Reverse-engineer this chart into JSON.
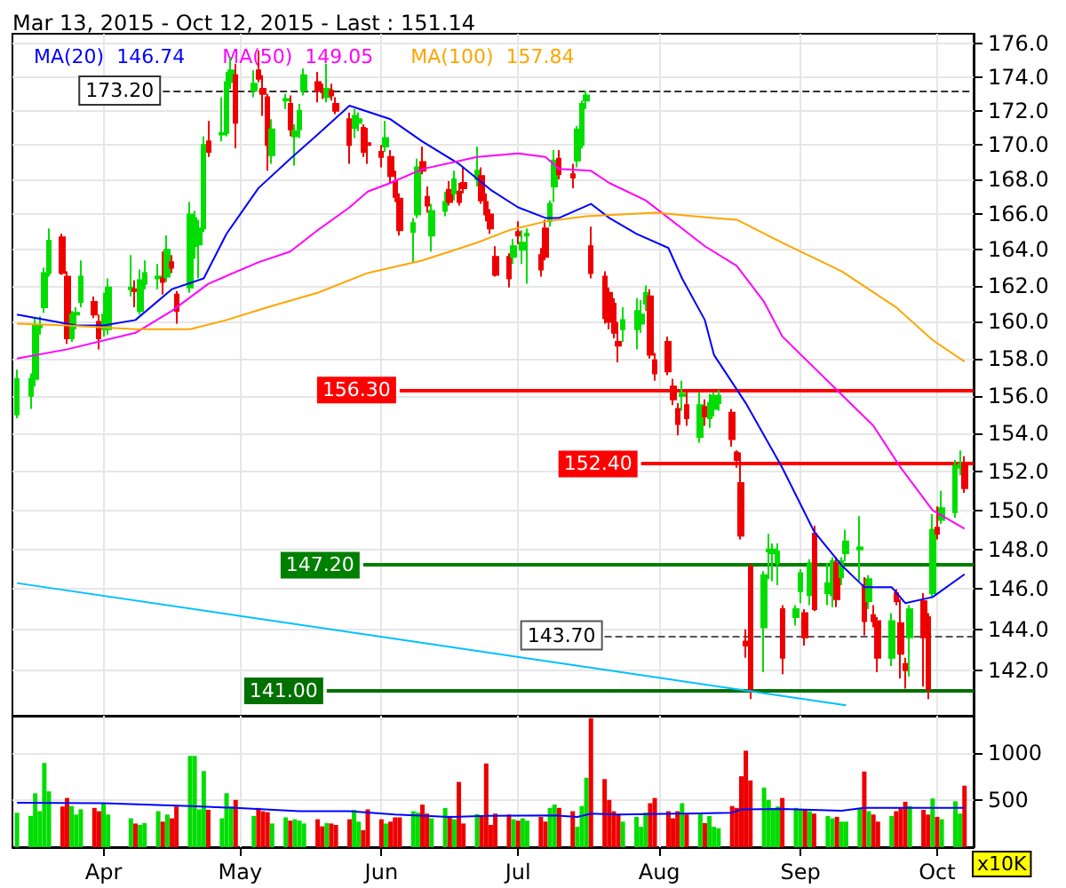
{
  "chart_data": [
    {
      "type": "candlestick",
      "title": "Mar 13, 2015 - Oct 12, 2015 - Last : 151.14",
      "legend": "top left",
      "log": "y",
      "grid": true,
      "tick_labels": "y",
      "xlim": [
        "2015-03-12",
        "2015-10-09"
      ],
      "xticks": [
        {
          "value": "2015-04-01",
          "label": null
        },
        {
          "value": "2015-05-01",
          "label": null
        },
        {
          "value": "2015-06-01",
          "label": null
        },
        {
          "value": "2015-07-01",
          "label": null
        },
        {
          "value": "2015-08-01",
          "label": null
        },
        {
          "value": "2015-09-01",
          "label": null
        },
        {
          "value": "2015-10-01",
          "label": null
        }
      ],
      "ylim": [
        139.8,
        176.6
      ],
      "yticks": [
        {
          "value": 142,
          "label": "142.0"
        },
        {
          "value": 144,
          "label": "144.0"
        },
        {
          "value": 146,
          "label": "146.0"
        },
        {
          "value": 148,
          "label": "148.0"
        },
        {
          "value": 150,
          "label": "150.0"
        },
        {
          "value": 152,
          "label": "152.0"
        },
        {
          "value": 154,
          "label": "154.0"
        },
        {
          "value": 156,
          "label": "156.0"
        },
        {
          "value": 158,
          "label": "158.0"
        },
        {
          "value": 160,
          "label": "160.0"
        },
        {
          "value": 162,
          "label": "162.0"
        },
        {
          "value": 164,
          "label": "164.0"
        },
        {
          "value": 166,
          "label": "166.0"
        },
        {
          "value": 168,
          "label": "168.0"
        },
        {
          "value": 170,
          "label": "170.0"
        },
        {
          "value": 172,
          "label": "172.0"
        },
        {
          "value": 174,
          "label": "174.0"
        },
        {
          "value": 176,
          "label": "176.0"
        }
      ],
      "x": [
        "2015-03-13",
        "2015-03-16",
        "2015-03-17",
        "2015-03-18",
        "2015-03-19",
        "2015-03-20",
        "2015-03-23",
        "2015-03-24",
        "2015-03-25",
        "2015-03-26",
        "2015-03-27",
        "2015-03-30",
        "2015-03-31",
        "2015-04-01",
        "2015-04-02",
        "2015-04-07",
        "2015-04-08",
        "2015-04-09",
        "2015-04-10",
        "2015-04-13",
        "2015-04-14",
        "2015-04-15",
        "2015-04-16",
        "2015-04-17",
        "2015-04-20",
        "2015-04-21",
        "2015-04-22",
        "2015-04-23",
        "2015-04-24",
        "2015-04-27",
        "2015-04-28",
        "2015-04-29",
        "2015-04-30",
        "2015-05-04",
        "2015-05-05",
        "2015-05-06",
        "2015-05-07",
        "2015-05-08",
        "2015-05-11",
        "2015-05-12",
        "2015-05-13",
        "2015-05-14",
        "2015-05-15",
        "2015-05-18",
        "2015-05-19",
        "2015-05-20",
        "2015-05-21",
        "2015-05-22",
        "2015-05-25",
        "2015-05-26",
        "2015-05-27",
        "2015-05-28",
        "2015-05-29",
        "2015-06-01",
        "2015-06-02",
        "2015-06-03",
        "2015-06-04",
        "2015-06-05",
        "2015-06-08",
        "2015-06-09",
        "2015-06-10",
        "2015-06-11",
        "2015-06-12",
        "2015-06-15",
        "2015-06-16",
        "2015-06-17",
        "2015-06-18",
        "2015-06-19",
        "2015-06-22",
        "2015-06-23",
        "2015-06-24",
        "2015-06-25",
        "2015-06-26",
        "2015-06-29",
        "2015-06-30",
        "2015-07-01",
        "2015-07-02",
        "2015-07-03",
        "2015-07-06",
        "2015-07-07",
        "2015-07-08",
        "2015-07-09",
        "2015-07-10",
        "2015-07-13",
        "2015-07-14",
        "2015-07-15",
        "2015-07-16",
        "2015-07-17",
        "2015-07-20",
        "2015-07-21",
        "2015-07-22",
        "2015-07-23",
        "2015-07-24",
        "2015-07-27",
        "2015-07-28",
        "2015-07-29",
        "2015-07-30",
        "2015-07-31",
        "2015-08-03",
        "2015-08-04",
        "2015-08-05",
        "2015-08-06",
        "2015-08-07",
        "2015-08-10",
        "2015-08-11",
        "2015-08-12",
        "2015-08-13",
        "2015-08-14",
        "2015-08-17",
        "2015-08-18",
        "2015-08-19",
        "2015-08-20",
        "2015-08-21",
        "2015-08-24",
        "2015-08-25",
        "2015-08-26",
        "2015-08-27",
        "2015-08-28",
        "2015-08-31",
        "2015-09-01",
        "2015-09-02",
        "2015-09-03",
        "2015-09-04",
        "2015-09-07",
        "2015-09-08",
        "2015-09-09",
        "2015-09-10",
        "2015-09-11",
        "2015-09-14",
        "2015-09-15",
        "2015-09-16",
        "2015-09-17",
        "2015-09-18",
        "2015-09-21",
        "2015-09-22",
        "2015-09-23",
        "2015-09-24",
        "2015-09-25",
        "2015-09-28",
        "2015-09-29",
        "2015-09-30",
        "2015-10-01",
        "2015-10-02",
        "2015-10-05",
        "2015-10-06",
        "2015-10-07"
      ],
      "ohlc": [
        [
          155.0,
          157.4,
          154.8,
          156.9
        ],
        [
          156.0,
          157.2,
          155.3,
          156.9
        ],
        [
          156.9,
          160.2,
          156.5,
          159.8
        ],
        [
          159.7,
          160.3,
          159.3,
          159.8
        ],
        [
          160.8,
          163.0,
          160.5,
          162.7
        ],
        [
          162.7,
          165.2,
          162.5,
          164.5
        ],
        [
          164.7,
          164.9,
          162.6,
          162.7
        ],
        [
          162.5,
          162.8,
          158.8,
          159.1
        ],
        [
          159.1,
          160.6,
          158.9,
          160.4
        ],
        [
          160.4,
          160.8,
          159.6,
          160.5
        ],
        [
          161.1,
          163.4,
          160.8,
          162.5
        ],
        [
          161.1,
          161.4,
          160.2,
          160.4
        ],
        [
          160.0,
          160.4,
          158.5,
          159.1
        ],
        [
          159.6,
          161.6,
          159.2,
          160.4
        ],
        [
          159.6,
          162.4,
          159.3,
          161.9
        ],
        [
          161.8,
          163.7,
          161.4,
          161.9
        ],
        [
          161.8,
          162.3,
          160.8,
          161.7
        ],
        [
          160.6,
          162.9,
          160.4,
          162.3
        ],
        [
          162.1,
          163.4,
          161.8,
          162.7
        ],
        [
          162.4,
          163.2,
          161.8,
          162.5
        ],
        [
          162.4,
          163.9,
          161.5,
          162.2
        ],
        [
          162.5,
          164.8,
          162.2,
          164.0
        ],
        [
          163.3,
          163.7,
          162.7,
          163.0
        ],
        [
          161.5,
          161.7,
          159.9,
          160.6
        ],
        [
          161.9,
          166.7,
          161.6,
          166.0
        ],
        [
          164.2,
          166.2,
          163.5,
          165.8
        ],
        [
          164.3,
          165.7,
          162.4,
          165.2
        ],
        [
          165.2,
          170.5,
          165.0,
          170.0
        ],
        [
          170.2,
          171.4,
          169.3,
          169.6
        ],
        [
          170.6,
          172.8,
          170.2,
          170.7
        ],
        [
          170.7,
          174.3,
          170.5,
          173.7
        ],
        [
          173.7,
          175.2,
          173.3,
          174.4
        ],
        [
          174.1,
          174.8,
          169.8,
          171.3
        ],
        [
          173.2,
          174.4,
          172.8,
          173.6
        ],
        [
          174.4,
          175.6,
          173.7,
          173.9
        ],
        [
          173.3,
          174.1,
          171.7,
          173.0
        ],
        [
          172.8,
          173.0,
          168.5,
          170.0
        ],
        [
          169.4,
          171.5,
          168.9,
          170.9
        ],
        [
          172.6,
          173.0,
          172.1,
          172.7
        ],
        [
          172.4,
          172.9,
          170.5,
          170.9
        ],
        [
          170.5,
          171.2,
          168.8,
          170.8
        ],
        [
          170.9,
          172.4,
          170.4,
          172.0
        ],
        [
          173.2,
          174.5,
          172.9,
          174.1
        ],
        [
          173.7,
          174.3,
          172.5,
          173.2
        ],
        [
          173.2,
          173.6,
          172.7,
          173.1
        ],
        [
          172.8,
          174.8,
          172.5,
          173.3
        ],
        [
          173.2,
          173.6,
          172.6,
          172.9
        ],
        [
          172.4,
          172.8,
          171.8,
          172.0
        ],
        [
          171.5,
          171.9,
          168.9,
          170.0
        ],
        [
          171.0,
          172.1,
          170.4,
          171.7
        ],
        [
          171.3,
          171.9,
          170.8,
          171.5
        ],
        [
          171.0,
          171.2,
          169.3,
          169.6
        ],
        [
          170.1,
          171.0,
          168.9,
          170.0
        ],
        [
          169.6,
          170.0,
          168.7,
          169.3
        ],
        [
          169.9,
          171.4,
          169.6,
          170.4
        ],
        [
          169.3,
          169.7,
          167.8,
          168.2
        ],
        [
          167.9,
          168.5,
          166.7,
          167.0
        ],
        [
          166.9,
          167.2,
          164.8,
          165.1
        ],
        [
          165.0,
          165.8,
          163.3,
          165.5
        ],
        [
          166.0,
          169.2,
          165.8,
          168.7
        ],
        [
          169.0,
          169.9,
          168.3,
          168.5
        ],
        [
          167.0,
          167.6,
          166.1,
          166.5
        ],
        [
          164.8,
          166.6,
          163.9,
          166.2
        ],
        [
          166.2,
          167.3,
          165.9,
          166.7
        ],
        [
          167.4,
          167.9,
          166.5,
          166.7
        ],
        [
          167.2,
          168.5,
          166.8,
          168.0
        ],
        [
          167.3,
          167.8,
          166.5,
          166.7
        ],
        [
          167.8,
          168.7,
          167.2,
          167.5
        ],
        [
          168.0,
          169.9,
          167.6,
          168.5
        ],
        [
          168.2,
          168.7,
          166.6,
          166.8
        ],
        [
          166.7,
          167.2,
          165.6,
          166.0
        ],
        [
          166.0,
          166.3,
          164.9,
          165.2
        ],
        [
          163.6,
          164.2,
          162.5,
          162.6
        ],
        [
          163.6,
          163.8,
          161.9,
          162.4
        ],
        [
          163.6,
          164.6,
          163.2,
          164.2
        ],
        [
          165.0,
          165.6,
          164.3,
          164.8
        ],
        [
          164.0,
          165.1,
          163.2,
          164.4
        ],
        [
          164.8,
          165.2,
          162.1,
          164.9
        ],
        [
          163.7,
          164.1,
          162.5,
          162.9
        ],
        [
          165.2,
          165.7,
          163.4,
          163.6
        ],
        [
          165.6,
          166.8,
          165.3,
          166.6
        ],
        [
          167.6,
          169.7,
          166.7,
          169.1
        ],
        [
          169.2,
          169.7,
          168.0,
          168.3
        ],
        [
          168.3,
          168.9,
          167.5,
          168.1
        ],
        [
          169.1,
          171.1,
          168.7,
          170.9
        ],
        [
          170.0,
          172.6,
          169.8,
          172.4
        ],
        [
          172.6,
          173.2,
          172.1,
          172.9
        ],
        [
          164.2,
          165.3,
          162.4,
          162.7
        ],
        [
          162.5,
          162.8,
          159.9,
          160.2
        ],
        [
          161.6,
          161.9,
          159.6,
          160.0
        ],
        [
          161.0,
          161.3,
          159.1,
          159.4
        ],
        [
          158.9,
          160.0,
          157.8,
          158.7
        ],
        [
          159.6,
          160.8,
          158.9,
          160.1
        ],
        [
          159.6,
          161.3,
          158.5,
          160.6
        ],
        [
          159.9,
          161.2,
          159.4,
          160.4
        ],
        [
          161.0,
          162.0,
          160.6,
          161.6
        ],
        [
          161.4,
          161.8,
          158.0,
          158.2
        ],
        [
          157.9,
          158.3,
          156.8,
          157.2
        ],
        [
          158.9,
          159.2,
          157.1,
          157.3
        ],
        [
          156.5,
          156.9,
          155.5,
          155.8
        ],
        [
          155.3,
          155.6,
          153.9,
          154.5
        ],
        [
          156.0,
          156.8,
          155.2,
          156.1
        ],
        [
          155.5,
          156.3,
          154.4,
          154.8
        ],
        [
          153.8,
          156.2,
          153.5,
          155.5
        ],
        [
          155.4,
          155.8,
          154.4,
          154.9
        ],
        [
          154.8,
          156.1,
          154.3,
          155.6
        ],
        [
          155.3,
          156.2,
          154.9,
          156.0
        ],
        [
          155.6,
          156.3,
          155.2,
          156.0
        ],
        [
          155.1,
          155.3,
          153.3,
          153.7
        ],
        [
          153.0,
          153.1,
          152.2,
          152.6
        ],
        [
          151.4,
          153.0,
          148.5,
          148.7
        ],
        [
          143.4,
          144.0,
          142.6,
          143.2
        ],
        [
          147.1,
          147.3,
          140.6,
          141.1
        ],
        [
          144.1,
          146.9,
          141.9,
          146.7
        ],
        [
          147.9,
          148.8,
          146.5,
          148.0
        ],
        [
          147.8,
          148.3,
          146.4,
          148.0
        ],
        [
          147.3,
          148.3,
          146.2,
          147.9
        ],
        [
          145.0,
          145.2,
          141.8,
          142.6
        ],
        [
          144.6,
          145.2,
          144.2,
          145.0
        ],
        [
          145.9,
          147.0,
          145.3,
          146.8
        ],
        [
          144.8,
          145.0,
          143.2,
          143.6
        ],
        [
          145.7,
          147.5,
          145.2,
          147.3
        ],
        [
          148.8,
          149.2,
          144.9,
          145.0
        ],
        [
          145.8,
          147.3,
          145.2,
          146.3
        ],
        [
          145.7,
          147.6,
          145.1,
          147.4
        ],
        [
          147.3,
          147.6,
          145.1,
          145.5
        ],
        [
          146.6,
          147.6,
          146.2,
          147.4
        ],
        [
          147.8,
          149.0,
          147.4,
          148.4
        ],
        [
          148.0,
          149.7,
          146.4,
          148.1
        ],
        [
          146.2,
          146.6,
          143.7,
          144.4
        ],
        [
          145.4,
          146.7,
          145.0,
          146.5
        ],
        [
          144.7,
          145.2,
          144.1,
          144.4
        ],
        [
          144.4,
          144.6,
          141.9,
          142.6
        ],
        [
          142.6,
          144.8,
          142.2,
          144.4
        ],
        [
          145.8,
          146.0,
          145.2,
          145.4
        ],
        [
          144.3,
          145.5,
          141.6,
          142.8
        ],
        [
          142.3,
          142.6,
          141.1,
          142.0
        ],
        [
          143.6,
          145.2,
          141.7,
          145.0
        ],
        [
          145.4,
          145.8,
          141.2,
          143.6
        ],
        [
          144.6,
          144.8,
          140.6,
          141.1
        ],
        [
          145.8,
          149.8,
          145.6,
          149.0
        ],
        [
          149.1,
          150.2,
          148.5,
          148.8
        ],
        [
          149.5,
          151.0,
          149.3,
          150.1
        ],
        [
          149.9,
          152.6,
          149.6,
          152.3
        ],
        [
          152.2,
          153.1,
          151.8,
          152.4
        ],
        [
          152.4,
          152.8,
          150.9,
          151.14
        ]
      ],
      "colors": [
        "#00dd00",
        "#00dd00",
        "#00dd00",
        "#00dd00",
        "#00dd00",
        "#00dd00",
        "#ee0000",
        "#ee0000",
        "#00dd00",
        "#00dd00",
        "#00dd00",
        "#ee0000",
        "#ee0000",
        "#00dd00",
        "#00dd00",
        "#00dd00",
        "#ee0000",
        "#00dd00",
        "#00dd00",
        "#00dd00",
        "#ee0000",
        "#00dd00",
        "#ee0000",
        "#ee0000",
        "#00dd00",
        "#00dd00",
        "#00dd00",
        "#00dd00",
        "#ee0000",
        "#00dd00",
        "#00dd00",
        "#00dd00",
        "#ee0000",
        "#00dd00",
        "#ee0000",
        "#ee0000",
        "#ee0000",
        "#00dd00",
        "#00dd00",
        "#ee0000",
        "#00dd00",
        "#00dd00",
        "#00dd00",
        "#ee0000",
        "#ee0000",
        "#00dd00",
        "#ee0000",
        "#ee0000",
        "#ee0000",
        "#00dd00",
        "#00dd00",
        "#ee0000",
        "#ee0000",
        "#ee0000",
        "#00dd00",
        "#ee0000",
        "#ee0000",
        "#ee0000",
        "#00dd00",
        "#00dd00",
        "#ee0000",
        "#ee0000",
        "#00dd00",
        "#00dd00",
        "#ee0000",
        "#00dd00",
        "#ee0000",
        "#ee0000",
        "#00dd00",
        "#ee0000",
        "#ee0000",
        "#ee0000",
        "#ee0000",
        "#ee0000",
        "#00dd00",
        "#ee0000",
        "#00dd00",
        "#00dd00",
        "#ee0000",
        "#ee0000",
        "#00dd00",
        "#00dd00",
        "#ee0000",
        "#ee0000",
        "#00dd00",
        "#00dd00",
        "#00dd00",
        "#ee0000",
        "#ee0000",
        "#ee0000",
        "#ee0000",
        "#ee0000",
        "#00dd00",
        "#00dd00",
        "#00dd00",
        "#00dd00",
        "#ee0000",
        "#ee0000",
        "#ee0000",
        "#ee0000",
        "#ee0000",
        "#00dd00",
        "#ee0000",
        "#00dd00",
        "#ee0000",
        "#00dd00",
        "#00dd00",
        "#00dd00",
        "#ee0000",
        "#ee0000",
        "#ee0000",
        "#ee0000",
        "#ee0000",
        "#00dd00",
        "#00dd00",
        "#00dd00",
        "#00dd00",
        "#ee0000",
        "#00dd00",
        "#00dd00",
        "#ee0000",
        "#00dd00",
        "#ee0000",
        "#00dd00",
        "#00dd00",
        "#ee0000",
        "#00dd00",
        "#00dd00",
        "#00dd00",
        "#ee0000",
        "#00dd00",
        "#ee0000",
        "#ee0000",
        "#00dd00",
        "#ee0000",
        "#ee0000",
        "#ee0000",
        "#00dd00",
        "#ee0000",
        "#ee0000",
        "#00dd00",
        "#ee0000",
        "#00dd00",
        "#00dd00",
        "#00dd00",
        "#ee0000"
      ],
      "series": [
        {
          "type": "line",
          "name": "MA(20)  146.74",
          "color": "#0000ff",
          "x": [
            "2015-03-13",
            "2015-03-26",
            "2015-04-01",
            "2015-04-08",
            "2015-04-16",
            "2015-04-23",
            "2015-04-28",
            "2015-05-05",
            "2015-05-12",
            "2015-05-18",
            "2015-05-25",
            "2015-06-03",
            "2015-06-10",
            "2015-06-18",
            "2015-06-25",
            "2015-07-01",
            "2015-07-07",
            "2015-07-10",
            "2015-07-17",
            "2015-07-21",
            "2015-07-27",
            "2015-08-03",
            "2015-08-06",
            "2015-08-11",
            "2015-08-13",
            "2015-08-20",
            "2015-08-28",
            "2015-09-04",
            "2015-09-10",
            "2015-09-15",
            "2015-09-21",
            "2015-09-24",
            "2015-09-30",
            "2015-10-07"
          ],
          "values": [
            160.4,
            159.8,
            159.8,
            160.1,
            161.8,
            162.4,
            164.9,
            167.5,
            169.2,
            170.6,
            172.3,
            171.5,
            170.2,
            168.9,
            167.4,
            166.4,
            165.8,
            165.8,
            166.6,
            165.8,
            164.9,
            164.1,
            162.4,
            160.1,
            158.2,
            155.6,
            152.2,
            148.9,
            147.2,
            146.1,
            146.1,
            145.3,
            145.6,
            146.74
          ]
        },
        {
          "type": "line",
          "name": "MA(50)  149.05",
          "color": "#ff00ff",
          "x": [
            "2015-03-13",
            "2015-03-24",
            "2015-04-08",
            "2015-04-16",
            "2015-04-24",
            "2015-05-05",
            "2015-05-12",
            "2015-05-18",
            "2015-05-25",
            "2015-05-29",
            "2015-06-03",
            "2015-06-10",
            "2015-06-22",
            "2015-07-01",
            "2015-07-07",
            "2015-07-10",
            "2015-07-17",
            "2015-07-21",
            "2015-07-29",
            "2015-08-03",
            "2015-08-11",
            "2015-08-18",
            "2015-08-24",
            "2015-08-28",
            "2015-09-09",
            "2015-09-17",
            "2015-09-23",
            "2015-09-30",
            "2015-10-07"
          ],
          "values": [
            158.0,
            158.5,
            159.4,
            160.6,
            162.1,
            163.3,
            163.9,
            165.1,
            166.4,
            167.3,
            167.8,
            168.6,
            169.3,
            169.5,
            169.3,
            168.6,
            168.5,
            167.8,
            166.8,
            165.8,
            164.2,
            163.1,
            161.1,
            159.2,
            156.3,
            154.4,
            152.2,
            150.0,
            149.05
          ]
        },
        {
          "type": "line",
          "name": "MA(100)  157.84",
          "color": "#ffa500",
          "x": [
            "2015-03-13",
            "2015-03-24",
            "2015-04-08",
            "2015-04-20",
            "2015-04-28",
            "2015-05-07",
            "2015-05-18",
            "2015-05-29",
            "2015-06-10",
            "2015-06-22",
            "2015-06-29",
            "2015-07-07",
            "2015-07-16",
            "2015-07-31",
            "2015-08-13",
            "2015-08-18",
            "2015-08-28",
            "2015-09-10",
            "2015-09-22",
            "2015-09-30",
            "2015-10-07"
          ],
          "values": [
            159.9,
            159.8,
            159.6,
            159.6,
            160.1,
            160.8,
            161.6,
            162.7,
            163.4,
            164.4,
            165.1,
            165.6,
            165.9,
            166.1,
            165.8,
            165.7,
            164.4,
            162.8,
            160.8,
            159.0,
            157.84
          ]
        },
        {
          "type": "line",
          "color": "#00bfff",
          "x": [
            "2015-03-13",
            "2015-09-11"
          ],
          "values": [
            146.3,
            140.3
          ]
        }
      ],
      "ref_lines": [
        {
          "axis": "y",
          "value": 173.2,
          "label": "173.20",
          "color": "#333333",
          "line_style": "dashed"
        },
        {
          "axis": "y",
          "value": 156.3,
          "label": "156.30",
          "color": "#ff0000"
        },
        {
          "axis": "y",
          "value": 152.4,
          "label": "152.40",
          "color": "#ff0000"
        },
        {
          "axis": "y",
          "value": 147.2,
          "label": "147.20",
          "color": "#008000"
        },
        {
          "axis": "y",
          "value": 143.7,
          "label": "143.70",
          "color": "#555555",
          "line_style": "dashed"
        },
        {
          "axis": "y",
          "value": 141,
          "label": "141.00",
          "color": "#007000"
        }
      ]
    },
    {
      "type": "bar",
      "grid": true,
      "ylabel": "x10K",
      "xlim": [
        "2015-03-12",
        "2015-10-09"
      ],
      "xticks": [
        {
          "value": "2015-04-01",
          "label": "Apr"
        },
        {
          "value": "2015-05-01",
          "label": "May"
        },
        {
          "value": "2015-06-01",
          "label": "Jun"
        },
        {
          "value": "2015-07-01",
          "label": "Jul"
        },
        {
          "value": "2015-08-01",
          "label": "Aug"
        },
        {
          "value": "2015-09-01",
          "label": "Sep"
        },
        {
          "value": "2015-10-01",
          "label": "Oct"
        }
      ],
      "ylim": [
        0,
        1390
      ],
      "yticks": [
        500,
        1000
      ],
      "x": [
        "2015-03-13",
        "2015-03-16",
        "2015-03-17",
        "2015-03-18",
        "2015-03-19",
        "2015-03-20",
        "2015-03-23",
        "2015-03-24",
        "2015-03-25",
        "2015-03-26",
        "2015-03-27",
        "2015-03-30",
        "2015-03-31",
        "2015-04-01",
        "2015-04-02",
        "2015-04-07",
        "2015-04-08",
        "2015-04-09",
        "2015-04-10",
        "2015-04-13",
        "2015-04-14",
        "2015-04-15",
        "2015-04-16",
        "2015-04-17",
        "2015-04-20",
        "2015-04-21",
        "2015-04-22",
        "2015-04-23",
        "2015-04-24",
        "2015-04-27",
        "2015-04-28",
        "2015-04-29",
        "2015-04-30",
        "2015-05-04",
        "2015-05-05",
        "2015-05-06",
        "2015-05-07",
        "2015-05-08",
        "2015-05-11",
        "2015-05-12",
        "2015-05-13",
        "2015-05-14",
        "2015-05-15",
        "2015-05-18",
        "2015-05-19",
        "2015-05-20",
        "2015-05-21",
        "2015-05-22",
        "2015-05-25",
        "2015-05-26",
        "2015-05-27",
        "2015-05-28",
        "2015-05-29",
        "2015-06-01",
        "2015-06-02",
        "2015-06-03",
        "2015-06-04",
        "2015-06-05",
        "2015-06-08",
        "2015-06-09",
        "2015-06-10",
        "2015-06-11",
        "2015-06-12",
        "2015-06-15",
        "2015-06-16",
        "2015-06-17",
        "2015-06-18",
        "2015-06-19",
        "2015-06-22",
        "2015-06-23",
        "2015-06-24",
        "2015-06-25",
        "2015-06-26",
        "2015-06-29",
        "2015-06-30",
        "2015-07-01",
        "2015-07-02",
        "2015-07-03",
        "2015-07-06",
        "2015-07-07",
        "2015-07-08",
        "2015-07-09",
        "2015-07-10",
        "2015-07-13",
        "2015-07-14",
        "2015-07-15",
        "2015-07-16",
        "2015-07-17",
        "2015-07-20",
        "2015-07-21",
        "2015-07-22",
        "2015-07-23",
        "2015-07-24",
        "2015-07-27",
        "2015-07-28",
        "2015-07-29",
        "2015-07-30",
        "2015-07-31",
        "2015-08-03",
        "2015-08-04",
        "2015-08-05",
        "2015-08-06",
        "2015-08-07",
        "2015-08-10",
        "2015-08-11",
        "2015-08-12",
        "2015-08-13",
        "2015-08-14",
        "2015-08-17",
        "2015-08-18",
        "2015-08-19",
        "2015-08-20",
        "2015-08-21",
        "2015-08-24",
        "2015-08-25",
        "2015-08-26",
        "2015-08-27",
        "2015-08-28",
        "2015-08-31",
        "2015-09-01",
        "2015-09-02",
        "2015-09-03",
        "2015-09-04",
        "2015-09-07",
        "2015-09-08",
        "2015-09-09",
        "2015-09-10",
        "2015-09-11",
        "2015-09-14",
        "2015-09-15",
        "2015-09-16",
        "2015-09-17",
        "2015-09-18",
        "2015-09-21",
        "2015-09-22",
        "2015-09-23",
        "2015-09-24",
        "2015-09-25",
        "2015-09-28",
        "2015-09-29",
        "2015-09-30",
        "2015-10-01",
        "2015-10-02",
        "2015-10-05",
        "2015-10-06",
        "2015-10-07"
      ],
      "series": [
        {
          "type": "bar",
          "values": [
            364,
            330,
            570,
            380,
            890,
            590,
            430,
            520,
            435,
            345,
            400,
            415,
            380,
            465,
            345,
            305,
            250,
            235,
            255,
            380,
            270,
            345,
            305,
            430,
            965,
            965,
            400,
            805,
            395,
            305,
            570,
            430,
            500,
            330,
            415,
            380,
            370,
            250,
            315,
            280,
            295,
            280,
            250,
            295,
            220,
            255,
            250,
            235,
            295,
            395,
            270,
            180,
            400,
            295,
            250,
            270,
            315,
            315,
            380,
            365,
            450,
            355,
            305,
            415,
            330,
            295,
            690,
            250,
            350,
            330,
            885,
            235,
            355,
            345,
            295,
            280,
            305,
            280,
            320,
            270,
            415,
            450,
            415,
            380,
            215,
            435,
            735,
            1364,
            720,
            500,
            380,
            345,
            270,
            320,
            215,
            365,
            465,
            520,
            380,
            305,
            380,
            465,
            345,
            365,
            255,
            330,
            215,
            200,
            435,
            415,
            750,
            1020,
            705,
            630,
            500,
            415,
            430,
            520,
            415,
            400,
            400,
            380,
            355,
            330,
            305,
            320,
            270,
            270,
            415,
            800,
            380,
            345,
            270,
            330,
            380,
            415,
            480,
            435,
            395,
            345,
            515,
            320,
            295,
            485,
            355,
            650
          ],
          "colors": [
            "#00dd00",
            "#00dd00",
            "#00dd00",
            "#00dd00",
            "#00dd00",
            "#00dd00",
            "#ee0000",
            "#ee0000",
            "#00dd00",
            "#00dd00",
            "#00dd00",
            "#ee0000",
            "#ee0000",
            "#00dd00",
            "#00dd00",
            "#00dd00",
            "#ee0000",
            "#00dd00",
            "#00dd00",
            "#00dd00",
            "#ee0000",
            "#00dd00",
            "#ee0000",
            "#ee0000",
            "#00dd00",
            "#00dd00",
            "#00dd00",
            "#00dd00",
            "#ee0000",
            "#00dd00",
            "#00dd00",
            "#00dd00",
            "#ee0000",
            "#00dd00",
            "#ee0000",
            "#ee0000",
            "#ee0000",
            "#00dd00",
            "#00dd00",
            "#ee0000",
            "#00dd00",
            "#00dd00",
            "#00dd00",
            "#ee0000",
            "#ee0000",
            "#00dd00",
            "#ee0000",
            "#ee0000",
            "#ee0000",
            "#00dd00",
            "#00dd00",
            "#ee0000",
            "#ee0000",
            "#ee0000",
            "#00dd00",
            "#ee0000",
            "#ee0000",
            "#ee0000",
            "#00dd00",
            "#00dd00",
            "#ee0000",
            "#ee0000",
            "#00dd00",
            "#00dd00",
            "#ee0000",
            "#00dd00",
            "#ee0000",
            "#ee0000",
            "#00dd00",
            "#ee0000",
            "#ee0000",
            "#ee0000",
            "#ee0000",
            "#ee0000",
            "#00dd00",
            "#ee0000",
            "#00dd00",
            "#00dd00",
            "#ee0000",
            "#ee0000",
            "#00dd00",
            "#00dd00",
            "#ee0000",
            "#ee0000",
            "#00dd00",
            "#00dd00",
            "#00dd00",
            "#ee0000",
            "#ee0000",
            "#ee0000",
            "#ee0000",
            "#ee0000",
            "#00dd00",
            "#00dd00",
            "#00dd00",
            "#00dd00",
            "#ee0000",
            "#ee0000",
            "#ee0000",
            "#ee0000",
            "#ee0000",
            "#00dd00",
            "#ee0000",
            "#00dd00",
            "#ee0000",
            "#00dd00",
            "#00dd00",
            "#00dd00",
            "#ee0000",
            "#ee0000",
            "#ee0000",
            "#ee0000",
            "#ee0000",
            "#00dd00",
            "#00dd00",
            "#00dd00",
            "#00dd00",
            "#ee0000",
            "#00dd00",
            "#00dd00",
            "#ee0000",
            "#00dd00",
            "#ee0000",
            "#00dd00",
            "#00dd00",
            "#ee0000",
            "#00dd00",
            "#00dd00",
            "#00dd00",
            "#ee0000",
            "#00dd00",
            "#ee0000",
            "#ee0000",
            "#00dd00",
            "#ee0000",
            "#ee0000",
            "#ee0000",
            "#00dd00",
            "#ee0000",
            "#ee0000",
            "#00dd00",
            "#ee0000",
            "#00dd00",
            "#00dd00",
            "#00dd00",
            "#ee0000"
          ]
        },
        {
          "type": "line",
          "color": "#0000ff",
          "x": [
            "2015-03-13",
            "2015-04-01",
            "2015-04-20",
            "2015-04-30",
            "2015-05-14",
            "2015-05-25",
            "2015-06-04",
            "2015-06-16",
            "2015-06-24",
            "2015-07-09",
            "2015-07-14",
            "2015-07-17",
            "2015-07-23",
            "2015-08-07",
            "2015-08-17",
            "2015-08-19",
            "2015-08-28",
            "2015-09-10",
            "2015-09-15",
            "2015-10-07"
          ],
          "values": [
            470,
            465,
            435,
            415,
            380,
            380,
            345,
            320,
            330,
            335,
            320,
            355,
            345,
            355,
            365,
            400,
            405,
            385,
            415,
            415
          ]
        }
      ]
    }
  ]
}
